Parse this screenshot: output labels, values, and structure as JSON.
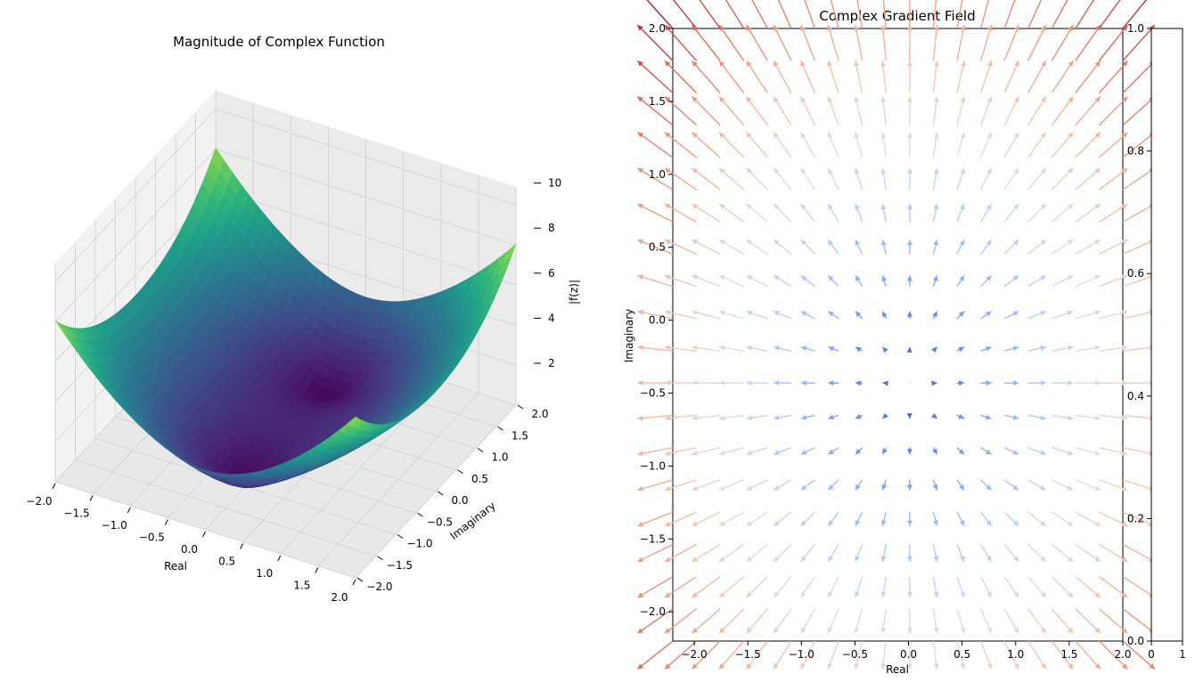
{
  "chart_data": [
    {
      "type": "surface3d",
      "title": "Magnitude of Complex Function",
      "xlabel": "Real",
      "ylabel": "Imaginary",
      "zlabel": "|f(z)|",
      "x_range": [
        -2,
        2
      ],
      "y_range": [
        -2,
        2
      ],
      "z_range": [
        0,
        10
      ],
      "function": "|z^2 + 1| sampled on x,y in [-2,2]",
      "x_ticks": [
        "−2.0",
        "−1.5",
        "−1.0",
        "−0.5",
        "0.0",
        "0.5",
        "1.0",
        "1.5",
        "2.0"
      ],
      "y_ticks": [
        "−2.0",
        "−1.5",
        "−1.0",
        "−0.5",
        "0.0",
        "0.5",
        "1.0",
        "1.5",
        "2.0"
      ],
      "z_ticks": [
        "2",
        "4",
        "6",
        "8",
        "10"
      ],
      "colormap": "viridis",
      "grid": true
    },
    {
      "type": "quiver",
      "title": "Complex Gradient Field",
      "xlabel": "Real",
      "ylabel": "Imaginary",
      "xlim": [
        -2.2,
        2.0
      ],
      "ylim": [
        -2.2,
        2.0
      ],
      "grid_points": {
        "x_min": -2.2,
        "x_max": 2.0,
        "y_min": -2.2,
        "y_max": 2.0,
        "count": 20
      },
      "field": "gradient of |z^2 + 1|",
      "x_ticks": [
        "−2.0",
        "−1.5",
        "−1.0",
        "−0.5",
        "0.0",
        "0.5",
        "1.0",
        "1.5",
        "2.0"
      ],
      "y_ticks": [
        "−2.0",
        "−1.5",
        "−1.0",
        "−0.5",
        "0.0",
        "0.5",
        "1.0",
        "1.5",
        "2.0"
      ],
      "colormap": "coolwarm",
      "colorbar": {
        "range": [
          0.0,
          1.0
        ],
        "ticks": [
          "0.0",
          "0.2",
          "0.4",
          "0.6",
          "0.8",
          "1.0"
        ],
        "x_ticks": [
          "0",
          "1"
        ]
      }
    }
  ]
}
